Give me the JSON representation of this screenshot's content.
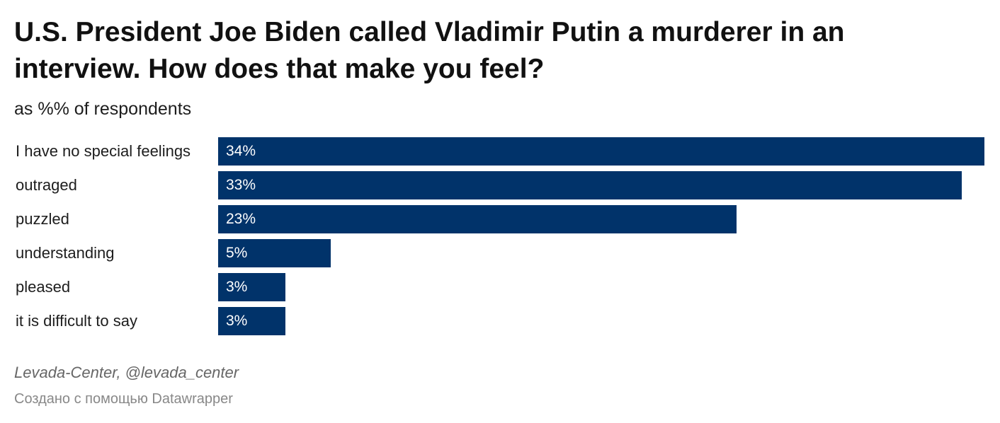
{
  "chart_data": {
    "type": "bar",
    "orientation": "horizontal",
    "title": "U.S. President Joe Biden called Vladimir Putin a murderer in an interview. How does that make you feel?",
    "subtitle": "as %% of respondents",
    "categories": [
      "I have no special feelings",
      "outraged",
      "puzzled",
      "understanding",
      "pleased",
      "it is difficult to say"
    ],
    "values": [
      34,
      33,
      23,
      5,
      3,
      3
    ],
    "value_labels": [
      "34%",
      "33%",
      "23%",
      "5%",
      "3%",
      "3%"
    ],
    "color": "#01336a",
    "xlim": [
      0,
      34
    ],
    "source": "Levada-Center, @levada_center",
    "credit": "Создано с помощью Datawrapper"
  }
}
